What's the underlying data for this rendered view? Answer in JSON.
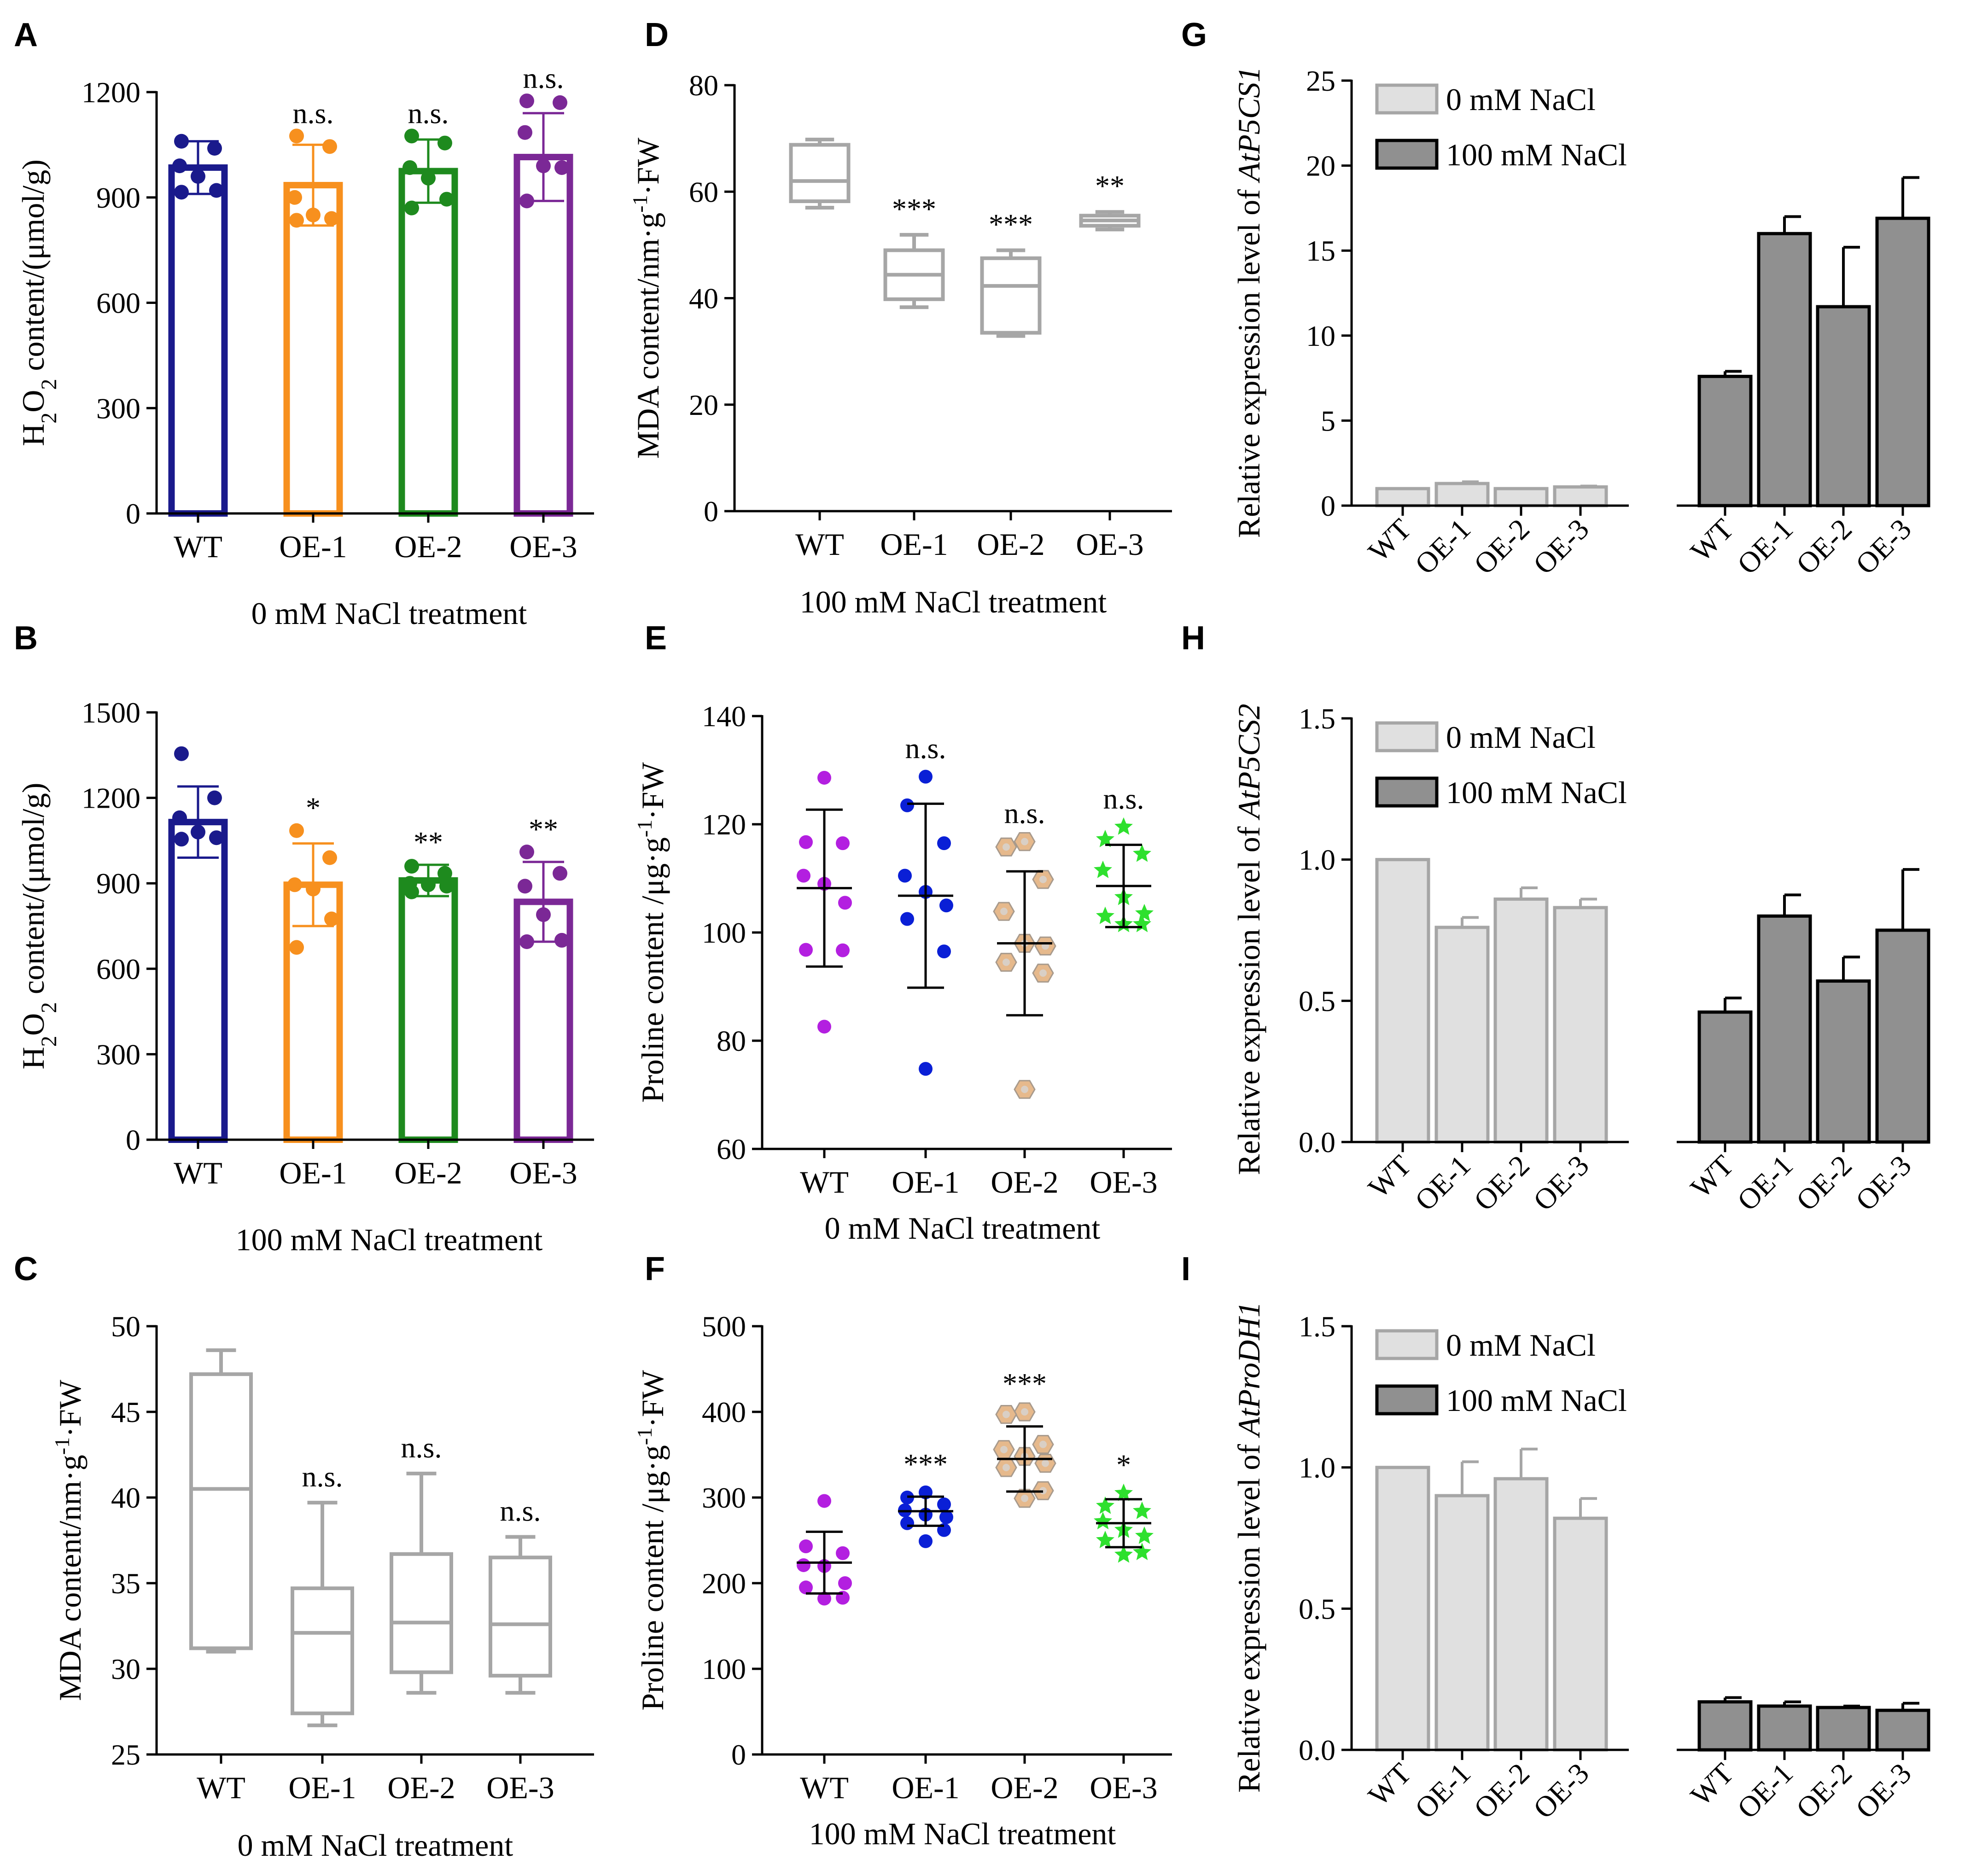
{
  "chart_data": [
    {
      "panel": "A",
      "type": "bar",
      "categories": [
        "WT",
        "OE-1",
        "OE-2",
        "OE-3"
      ],
      "values": [
        985,
        935,
        975,
        1015
      ],
      "errors": [
        75,
        115,
        90,
        125
      ],
      "points": [
        [
          1060,
          1040,
          990,
          960,
          920,
          915
        ],
        [
          1075,
          1045,
          900,
          850,
          840,
          835
        ],
        [
          1075,
          1055,
          985,
          955,
          895,
          870
        ],
        [
          1175,
          1170,
          1085,
          990,
          985,
          890
        ]
      ],
      "colors": [
        "#1a1a8c",
        "#f7901e",
        "#1e8a1e",
        "#7b2896"
      ],
      "significance": [
        "",
        "n.s.",
        "n.s.",
        "n.s."
      ],
      "ylabel": "H2O2 content/(μmol/g)",
      "ylabel_main": "H",
      "ylabel_sub": "2",
      "ylabel_mid": "O",
      "ylabel_sub2": "2",
      "ylabel_rest": " content/(μmol/g)",
      "xlabel": "0 mM NaCl treatment",
      "ylim": [
        0,
        1200
      ],
      "yticks": [
        "0",
        "300",
        "600",
        "900",
        "1200"
      ]
    },
    {
      "panel": "B",
      "type": "bar",
      "categories": [
        "WT",
        "OE-1",
        "OE-2",
        "OE-3"
      ],
      "values": [
        1115,
        895,
        910,
        835
      ],
      "errors": [
        125,
        145,
        55,
        140
      ],
      "points": [
        [
          1355,
          1200,
          1130,
          1080,
          1060,
          1055
        ],
        [
          1085,
          990,
          895,
          880,
          775,
          675
        ],
        [
          960,
          935,
          900,
          895,
          890,
          870
        ],
        [
          1010,
          935,
          890,
          790,
          700,
          695
        ]
      ],
      "colors": [
        "#1a1a8c",
        "#f7901e",
        "#1e8a1e",
        "#7b2896"
      ],
      "significance": [
        "",
        "*",
        "**",
        "**"
      ],
      "ylabel": "H2O2 content/(μmol/g)",
      "ylabel_main": "H",
      "ylabel_sub": "2",
      "ylabel_mid": "O",
      "ylabel_sub2": "2",
      "ylabel_rest": " content/(μmol/g)",
      "xlabel": "100 mM NaCl treatment",
      "ylim": [
        0,
        1500
      ],
      "yticks": [
        "0",
        "300",
        "600",
        "900",
        "1200",
        "1500"
      ]
    },
    {
      "panel": "C",
      "type": "box",
      "categories": [
        "WT",
        "OE-1",
        "OE-2",
        "OE-3"
      ],
      "boxes": [
        {
          "min": 31.0,
          "q1": 31.2,
          "median": 40.5,
          "q3": 47.2,
          "max": 48.6
        },
        {
          "min": 26.7,
          "q1": 27.4,
          "median": 32.1,
          "q3": 34.7,
          "max": 39.7
        },
        {
          "min": 28.6,
          "q1": 29.8,
          "median": 32.7,
          "q3": 36.7,
          "max": 41.4
        },
        {
          "min": 28.6,
          "q1": 29.6,
          "median": 32.6,
          "q3": 36.5,
          "max": 37.7
        }
      ],
      "significance": [
        "",
        "n.s.",
        "n.s.",
        "n.s."
      ],
      "ylabel": "MDA content/nm·g-1·FW",
      "ylabel_main": "MDA content/nm·g",
      "ylabel_sup": "-1",
      "ylabel_rest": "·FW",
      "xlabel": "0 mM NaCl treatment",
      "ylim": [
        25,
        50
      ],
      "yticks": [
        "25",
        "30",
        "35",
        "40",
        "45",
        "50"
      ]
    },
    {
      "panel": "D",
      "type": "box",
      "categories": [
        "WT",
        "OE-1",
        "OE-2",
        "OE-3"
      ],
      "boxes": [
        {
          "min": 57.0,
          "q1": 58.2,
          "median": 62.0,
          "q3": 68.8,
          "max": 69.8
        },
        {
          "min": 38.3,
          "q1": 39.8,
          "median": 44.4,
          "q3": 49.0,
          "max": 51.9
        },
        {
          "min": 32.9,
          "q1": 33.5,
          "median": 42.3,
          "q3": 47.5,
          "max": 49.0
        },
        {
          "min": 52.9,
          "q1": 53.6,
          "median": 54.6,
          "q3": 55.5,
          "max": 56.2
        }
      ],
      "significance": [
        "",
        "***",
        "***",
        "**"
      ],
      "ylabel": "MDA content/nm·g-1·FW",
      "ylabel_main": "MDA content/nm·g",
      "ylabel_sup": "-1",
      "ylabel_rest": "·FW",
      "xlabel": "100 mM NaCl treatment",
      "ylim": [
        0,
        80
      ],
      "yticks": [
        "0",
        "20",
        "40",
        "60",
        "80"
      ]
    },
    {
      "panel": "E",
      "type": "scatter",
      "categories": [
        "WT",
        "OE-1",
        "OE-2",
        "OE-3"
      ],
      "means": [
        108.2,
        106.8,
        98.0,
        108.6
      ],
      "sd": [
        14.5,
        17.0,
        13.3,
        7.6
      ],
      "points": [
        [
          128.6,
          116.7,
          116.5,
          110.5,
          109.0,
          105.5,
          96.8,
          96.7,
          82.6
        ],
        [
          128.8,
          123.5,
          116.5,
          110.5,
          107.5,
          105.0,
          102.5,
          96.5,
          74.8
        ],
        [
          116.8,
          115.8,
          109.8,
          103.9,
          98.0,
          97.5,
          94.5,
          92.5,
          71.0
        ],
        [
          119.5,
          117.2,
          114.5,
          111.5,
          106.5,
          103.5,
          103.0,
          101.5,
          101.5
        ]
      ],
      "marker_colors": [
        "#b31fe0",
        "#0a1fd6",
        "#e6b98c",
        "#2ee02e"
      ],
      "markers": [
        "circle",
        "circle",
        "hexagon",
        "star"
      ],
      "significance": [
        "",
        "n.s.",
        "n.s.",
        "n.s."
      ],
      "ylabel": "Proline content /μg·g-1·FW",
      "ylabel_main": "Proline content /μg·g",
      "ylabel_sup": "-1",
      "ylabel_rest": "·FW",
      "xlabel": "0 mM NaCl treatment",
      "ylim": [
        60,
        140
      ],
      "yticks": [
        "60",
        "80",
        "100",
        "120",
        "140"
      ]
    },
    {
      "panel": "F",
      "type": "scatter",
      "categories": [
        "WT",
        "OE-1",
        "OE-2",
        "OE-3"
      ],
      "means": [
        224,
        284,
        345,
        270
      ],
      "sd": [
        36,
        17,
        38,
        28
      ],
      "points": [
        [
          296,
          243,
          235,
          221,
          220,
          200,
          195,
          183,
          182
        ],
        [
          306,
          300,
          292,
          285,
          280,
          277,
          270,
          262,
          249
        ],
        [
          400,
          397,
          362,
          356,
          348,
          340,
          335,
          308,
          299
        ],
        [
          305,
          290,
          284,
          272,
          262,
          255,
          250,
          236,
          233
        ]
      ],
      "marker_colors": [
        "#b31fe0",
        "#0a1fd6",
        "#e6b98c",
        "#2ee02e"
      ],
      "markers": [
        "circle",
        "circle",
        "hexagon",
        "star"
      ],
      "significance": [
        "",
        "***",
        "***",
        "*"
      ],
      "ylabel": "Proline content /μg·g-1·FW",
      "ylabel_main": "Proline content /μg·g",
      "ylabel_sup": "-1",
      "ylabel_rest": "·FW",
      "xlabel": "100 mM NaCl treatment",
      "ylim": [
        0,
        500
      ],
      "yticks": [
        "0",
        "100",
        "200",
        "300",
        "400",
        "500"
      ]
    },
    {
      "panel": "G",
      "type": "grouped-bar",
      "categories": [
        "WT",
        "OE-1",
        "OE-2",
        "OE-3"
      ],
      "series": [
        {
          "name": "0 mM NaCl",
          "values": [
            1.0,
            1.3,
            1.0,
            1.1
          ],
          "errors": [
            0.0,
            0.1,
            0.0,
            0.05
          ],
          "color": "#e0e0e0"
        },
        {
          "name": "100 mM NaCl",
          "values": [
            7.6,
            16.0,
            11.7,
            16.9
          ],
          "errors": [
            0.3,
            1.0,
            3.5,
            2.4
          ],
          "color": "#909090"
        }
      ],
      "ylabel": "Relative expression level of AtP5CS1",
      "ylabel_main": "Relative expression level of ",
      "ylabel_gene": "AtP5CS1",
      "ylim": [
        0,
        25
      ],
      "yticks": [
        "0",
        "5",
        "10",
        "15",
        "20",
        "25"
      ]
    },
    {
      "panel": "H",
      "type": "grouped-bar",
      "categories": [
        "WT",
        "OE-1",
        "OE-2",
        "OE-3"
      ],
      "series": [
        {
          "name": "0 mM NaCl",
          "values": [
            1.0,
            0.76,
            0.86,
            0.83
          ],
          "errors": [
            0.0,
            0.035,
            0.04,
            0.03
          ],
          "color": "#e0e0e0"
        },
        {
          "name": "100 mM NaCl",
          "values": [
            0.46,
            0.8,
            0.57,
            0.75
          ],
          "errors": [
            0.05,
            0.075,
            0.085,
            0.215
          ],
          "color": "#909090"
        }
      ],
      "ylabel": "Relative expression level of AtP5CS2",
      "ylabel_main": "Relative expression level of ",
      "ylabel_gene": "AtP5CS2",
      "ylim": [
        0,
        1.5
      ],
      "yticks": [
        "0.0",
        "0.5",
        "1.0",
        "1.5"
      ]
    },
    {
      "panel": "I",
      "type": "grouped-bar",
      "categories": [
        "WT",
        "OE-1",
        "OE-2",
        "OE-3"
      ],
      "series": [
        {
          "name": "0 mM NaCl",
          "values": [
            1.0,
            0.9,
            0.96,
            0.82
          ],
          "errors": [
            0.0,
            0.12,
            0.105,
            0.07
          ],
          "color": "#e0e0e0"
        },
        {
          "name": "100 mM NaCl",
          "values": [
            0.17,
            0.155,
            0.15,
            0.14
          ],
          "errors": [
            0.015,
            0.015,
            0.005,
            0.025
          ],
          "color": "#909090"
        }
      ],
      "ylabel": "Relative expression level of AtProDH1",
      "ylabel_main": "Relative expression level of ",
      "ylabel_gene": "AtProDH1",
      "ylim": [
        0,
        1.5
      ],
      "yticks": [
        "0.0",
        "0.5",
        "1.0",
        "1.5"
      ]
    }
  ]
}
